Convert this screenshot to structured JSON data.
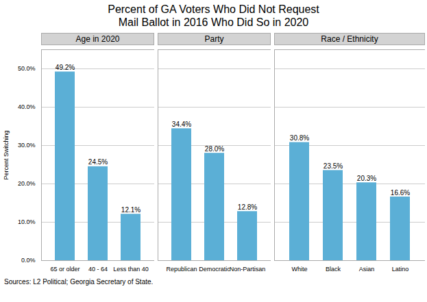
{
  "chart_data": {
    "type": "bar",
    "title": "Percent of GA Voters Who Did Not Request\nMail Ballot in 2016 Who Did So in 2020",
    "ylabel": "Percent Switching",
    "caption": "Sources: L2 Political; Georgia Secretary of State.",
    "color": "#5BAFD6",
    "ylim": [
      0,
      55
    ],
    "yticks": [
      {
        "value": 0,
        "label": "0.0%"
      },
      {
        "value": 10,
        "label": "10.0%"
      },
      {
        "value": 20,
        "label": "20.0%"
      },
      {
        "value": 30,
        "label": "30.0%"
      },
      {
        "value": 40,
        "label": "40.0%"
      },
      {
        "value": 50,
        "label": "50.0%"
      }
    ],
    "grid": true,
    "data_labels": true,
    "panels": [
      {
        "header": "Age in 2020",
        "categories": [
          "65 or older",
          "40 - 64",
          "Less than 40"
        ],
        "values": [
          49.2,
          24.5,
          12.1
        ],
        "value_labels": [
          "49.2%",
          "24.5%",
          "12.1%"
        ]
      },
      {
        "header": "Party",
        "categories": [
          "Republican",
          "Democratic",
          "Non-Partisan"
        ],
        "values": [
          34.4,
          28.0,
          12.8
        ],
        "value_labels": [
          "34.4%",
          "28.0%",
          "12.8%"
        ]
      },
      {
        "header": "Race / Ethnicity",
        "categories": [
          "White",
          "Black",
          "Asian",
          "Latino"
        ],
        "values": [
          30.8,
          23.5,
          20.3,
          16.6
        ],
        "value_labels": [
          "30.8%",
          "23.5%",
          "20.3%",
          "16.6%"
        ]
      }
    ]
  }
}
